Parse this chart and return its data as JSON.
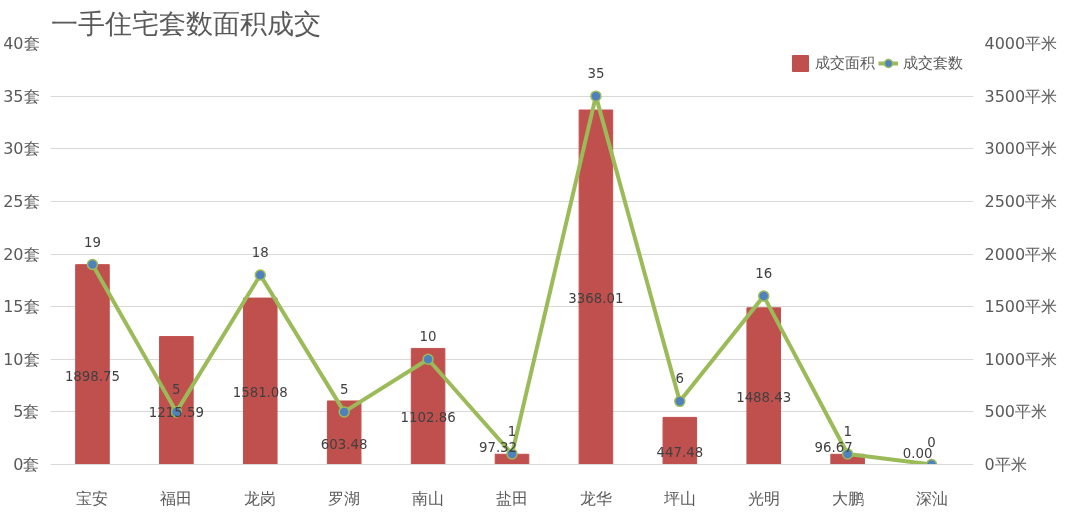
{
  "chart_data": {
    "type": "bar",
    "title": "一手住宅套数面积成交",
    "categories": [
      "宝安",
      "福田",
      "龙岗",
      "罗湖",
      "南山",
      "盐田",
      "龙华",
      "坪山",
      "光明",
      "大鹏",
      "深汕"
    ],
    "series": [
      {
        "name": "成交面积",
        "axis": "y2",
        "color": "#c0504d",
        "values": [
          1898.75,
          1215.59,
          1581.08,
          603.48,
          1102.86,
          97.32,
          3368.01,
          447.48,
          1488.43,
          96.67,
          0.0
        ],
        "value_labels": [
          "1898.75",
          "1215.59",
          "1581.08",
          "603.48",
          "1102.86",
          "97.32",
          "3368.01",
          "447.48",
          "1488.43",
          "96.67",
          "0.00"
        ]
      },
      {
        "name": "成交套数",
        "type": "line",
        "color": "#9bbb59",
        "values": [
          19,
          5,
          18,
          5,
          10,
          1,
          35,
          6,
          16,
          1,
          0
        ]
      }
    ],
    "ylim": [
      0,
      40
    ],
    "yticks": [
      {
        "value": 0,
        "label": "0套"
      },
      {
        "value": 5,
        "label": "5套"
      },
      {
        "value": 10,
        "label": "10套"
      },
      {
        "value": 15,
        "label": "15套"
      },
      {
        "value": 20,
        "label": "20套"
      },
      {
        "value": 25,
        "label": "25套"
      },
      {
        "value": 30,
        "label": "30套"
      },
      {
        "value": 35,
        "label": "35套"
      },
      {
        "value": 40,
        "label": "40套"
      }
    ],
    "y2lim": [
      0,
      4000
    ],
    "y2ticks": [
      {
        "value": 0,
        "label": "0平米"
      },
      {
        "value": 500,
        "label": "500平米"
      },
      {
        "value": 1000,
        "label": "1000平米"
      },
      {
        "value": 1500,
        "label": "1500平米"
      },
      {
        "value": 2000,
        "label": "2000平米"
      },
      {
        "value": 2500,
        "label": "2500平米"
      },
      {
        "value": 3000,
        "label": "3000平米"
      },
      {
        "value": 3500,
        "label": "3500平米"
      },
      {
        "value": 4000,
        "label": "4000平米"
      }
    ],
    "grid": "y",
    "legend": "top right",
    "data_labels": true,
    "marker": "circle",
    "line_style": "solid"
  }
}
